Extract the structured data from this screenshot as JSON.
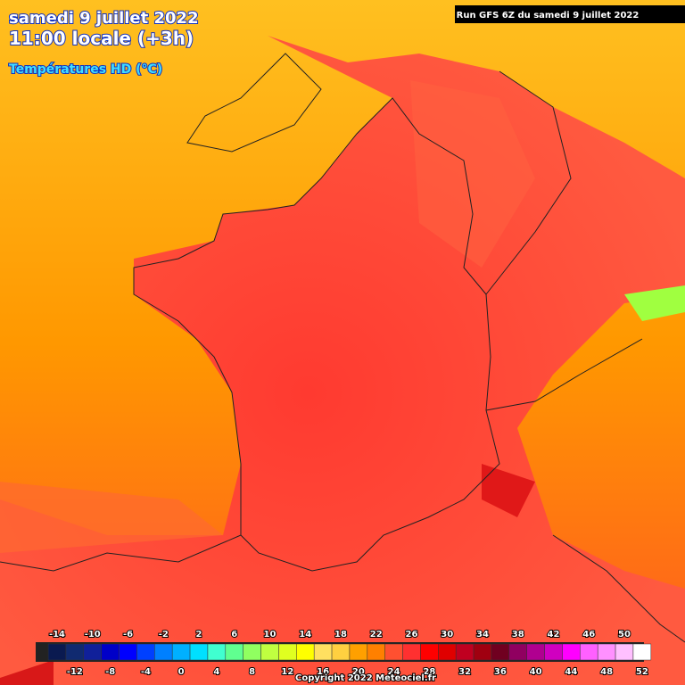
{
  "header": {
    "date": "samedi 9 juillet 2022",
    "time": "11:00 locale (+3h)",
    "layer": "Températures HD (°C)",
    "run": "Run GFS 6Z du samedi 9 juillet 2022"
  },
  "legend": {
    "stops": [
      {
        "label": -14,
        "color": "#0a1a50"
      },
      {
        "label": -12,
        "color": "#102a70"
      },
      {
        "label": -10,
        "color": "#10209a"
      },
      {
        "label": -8,
        "color": "#0000c8"
      },
      {
        "label": -6,
        "color": "#0000ff"
      },
      {
        "label": -4,
        "color": "#0040ff"
      },
      {
        "label": -2,
        "color": "#0080ff"
      },
      {
        "label": 0,
        "color": "#00b0ff"
      },
      {
        "label": 2,
        "color": "#00e0ff"
      },
      {
        "label": 4,
        "color": "#40ffd0"
      },
      {
        "label": 6,
        "color": "#60ff90"
      },
      {
        "label": 8,
        "color": "#90ff60"
      },
      {
        "label": 10,
        "color": "#c0ff40"
      },
      {
        "label": 12,
        "color": "#e0ff20"
      },
      {
        "label": 14,
        "color": "#ffff00"
      },
      {
        "label": 16,
        "color": "#ffe060"
      },
      {
        "label": 18,
        "color": "#ffd040"
      },
      {
        "label": 20,
        "color": "#ffa000"
      },
      {
        "label": 22,
        "color": "#ff8000"
      },
      {
        "label": 24,
        "color": "#ff5030"
      },
      {
        "label": 26,
        "color": "#ff3030"
      },
      {
        "label": 28,
        "color": "#ff0000"
      },
      {
        "label": 30,
        "color": "#e00000"
      },
      {
        "label": 32,
        "color": "#c00020"
      },
      {
        "label": 34,
        "color": "#a00010"
      },
      {
        "label": 36,
        "color": "#700020"
      },
      {
        "label": 38,
        "color": "#900060"
      },
      {
        "label": 40,
        "color": "#b00090"
      },
      {
        "label": 42,
        "color": "#d000c0"
      },
      {
        "label": 44,
        "color": "#ff00ff"
      },
      {
        "label": 46,
        "color": "#ff60ff"
      },
      {
        "label": 48,
        "color": "#ff90ff"
      },
      {
        "label": 50,
        "color": "#ffc0ff"
      },
      {
        "label": 52,
        "color": "#ffffff"
      }
    ]
  },
  "footer": {
    "copyright": "Copyright 2022 Meteociel.fr"
  }
}
